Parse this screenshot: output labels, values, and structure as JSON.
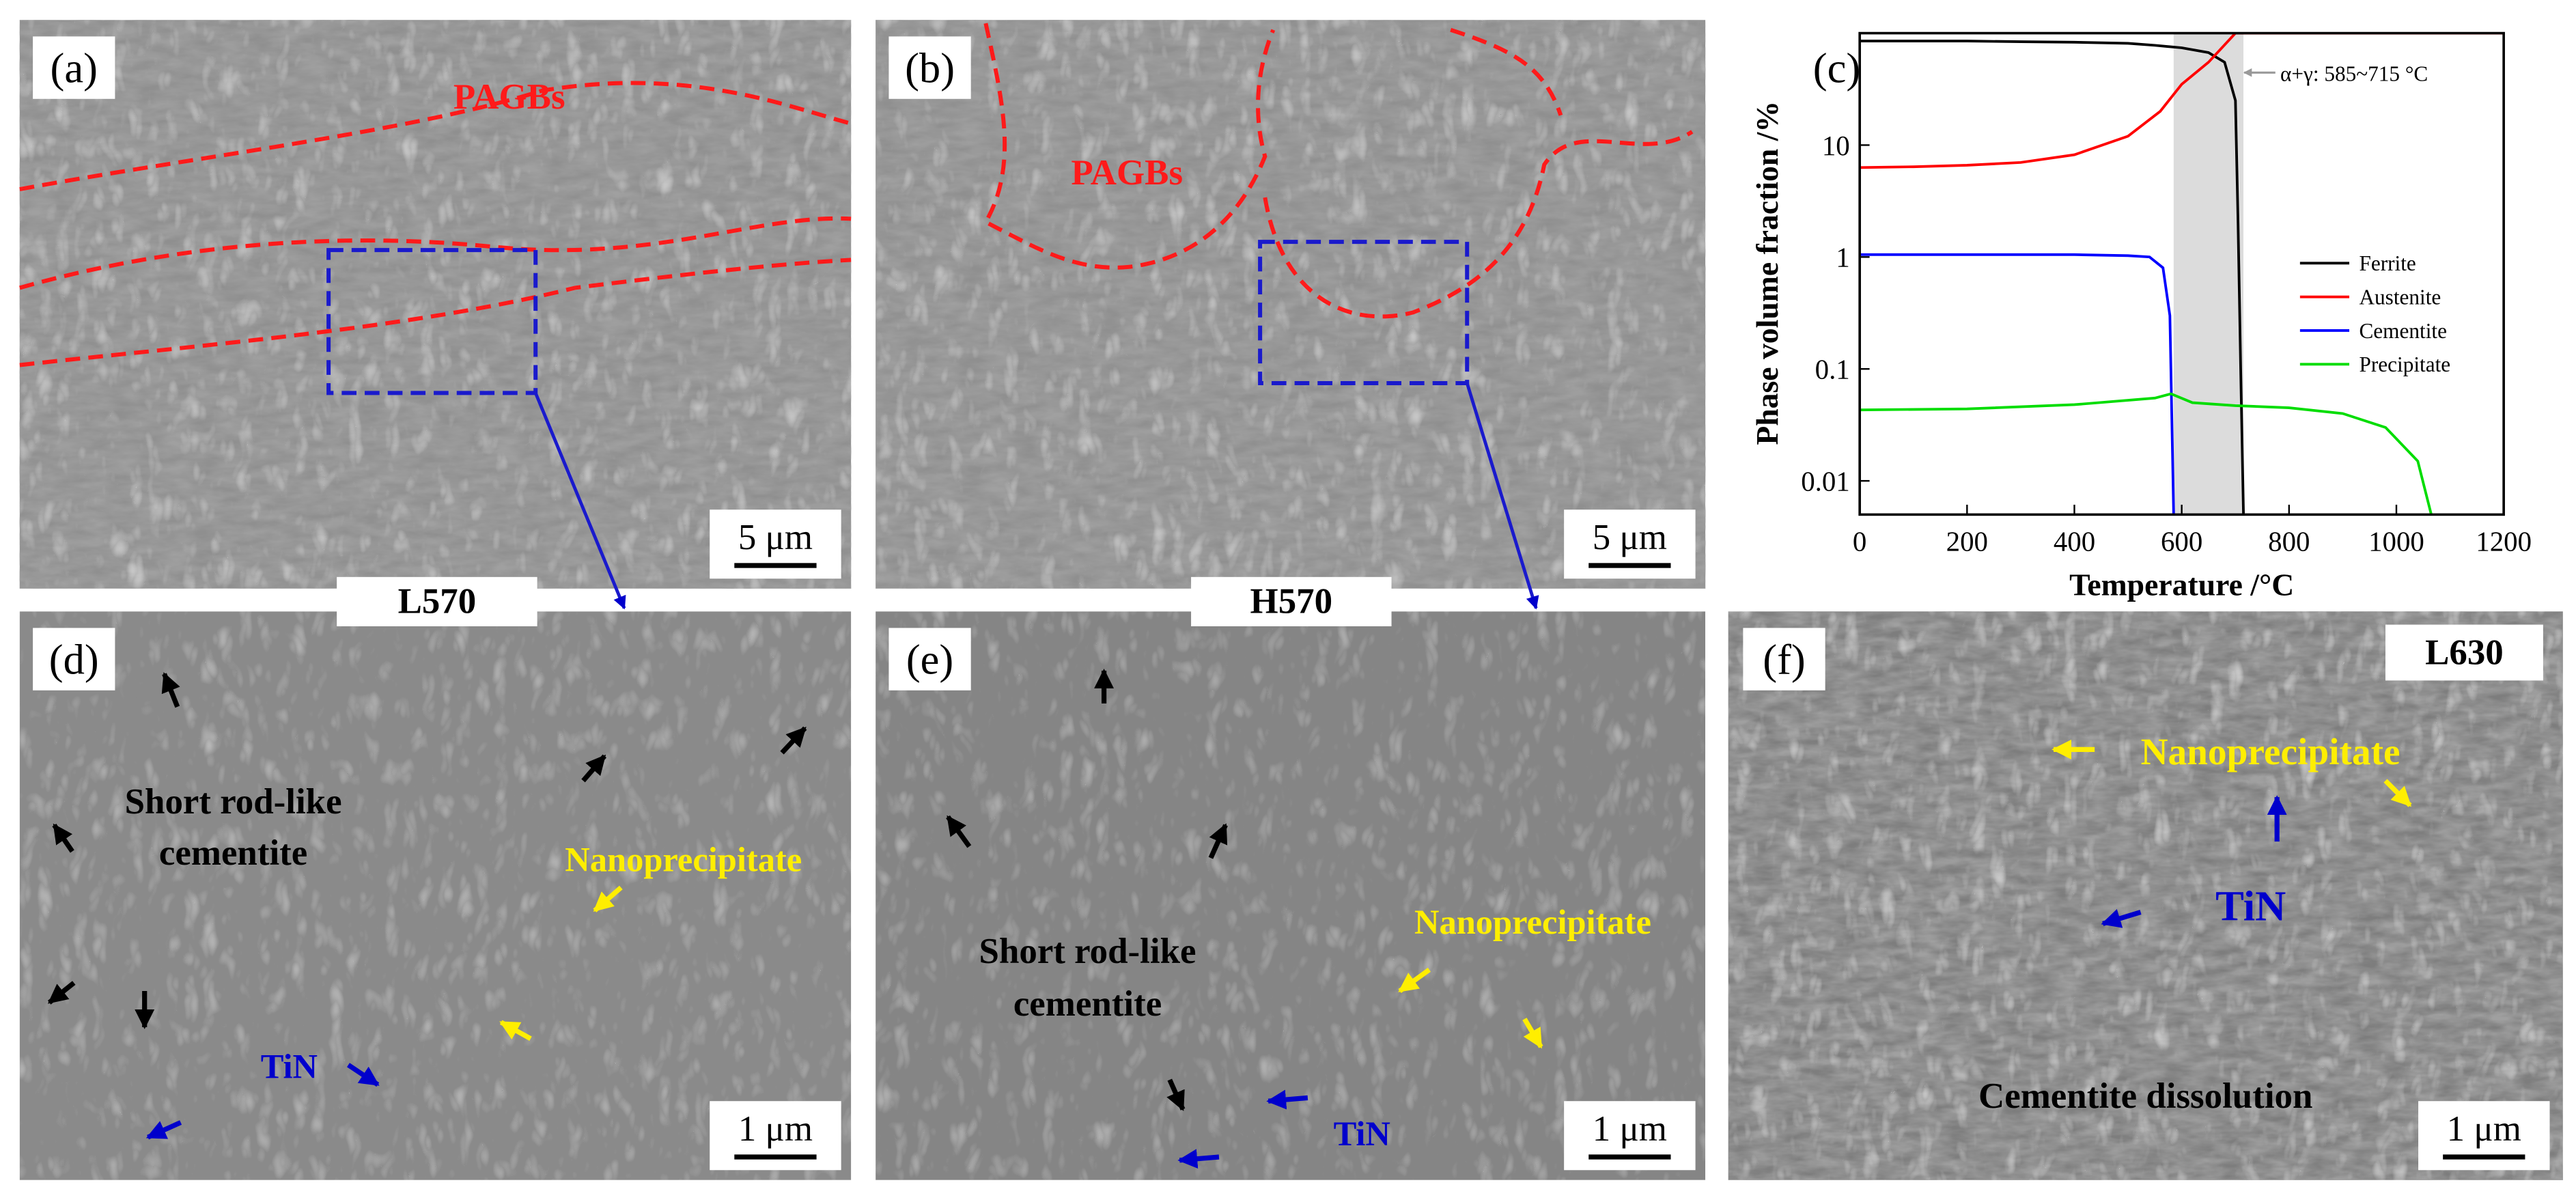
{
  "panels": [
    {
      "label": "(a)",
      "annotations": [
        "PAGBs"
      ],
      "scale_bar": "5 μm"
    },
    {
      "label": "(b)",
      "annotations": [
        "PAGBs"
      ],
      "scale_bar": "5 μm"
    },
    {
      "label": "(c)"
    },
    {
      "label": "(d)",
      "annotations": [
        "Short rod-like",
        "cementite",
        "Nanoprecipitate",
        "TiN"
      ],
      "scale_bar": "1 μm"
    },
    {
      "label": "(e)",
      "annotations": [
        "Short rod-like",
        "cementite",
        "Nanoprecipitate",
        "TiN"
      ],
      "scale_bar": "1 μm"
    },
    {
      "label": "(f)",
      "annotations": [
        "Nanoprecipitate",
        "TiN",
        "Cementite dissolution",
        "L630"
      ],
      "scale_bar": "1 μm"
    }
  ],
  "sample_labels": [
    "L570",
    "H570"
  ],
  "chart_data": {
    "type": "line",
    "x_label": "Temperature /°C",
    "y_label": "Phase volume fraction /%",
    "annotation": "α+γ: 585~715 °C",
    "span": [
      585,
      715
    ],
    "xlim": [
      0,
      1200
    ],
    "xticks": [
      0,
      200,
      400,
      600,
      800,
      1000,
      1200
    ],
    "ylim": [
      0.005,
      100
    ],
    "yticks": [
      0.01,
      0.1,
      1,
      10
    ],
    "log_y": true,
    "legend": "right",
    "series": [
      {
        "name": "Ferrite",
        "color": "#000000",
        "x": [
          0,
          100,
          200,
          300,
          400,
          500,
          550,
          600,
          650,
          680,
          700,
          705,
          710,
          715
        ],
        "values": [
          85,
          85,
          85,
          84,
          83,
          81,
          78,
          74,
          67,
          55,
          25,
          2,
          0.1,
          0.005
        ]
      },
      {
        "name": "Austenite",
        "color": "#ff0000",
        "x": [
          0,
          100,
          200,
          300,
          400,
          500,
          560,
          600,
          650,
          700,
          800,
          1000,
          1200
        ],
        "values": [
          6.3,
          6.4,
          6.6,
          7,
          8.2,
          12,
          20,
          35,
          55,
          100,
          100,
          100,
          100
        ]
      },
      {
        "name": "Cementite",
        "color": "#0000ff",
        "x": [
          0,
          200,
          400,
          500,
          540,
          565,
          578,
          585
        ],
        "values": [
          1.05,
          1.05,
          1.05,
          1.03,
          1,
          0.8,
          0.3,
          0.005
        ]
      },
      {
        "name": "Precipitate",
        "color": "#00dd00",
        "x": [
          0,
          200,
          400,
          550,
          580,
          620,
          700,
          800,
          900,
          980,
          1040,
          1065
        ],
        "values": [
          0.043,
          0.044,
          0.048,
          0.055,
          0.06,
          0.05,
          0.047,
          0.045,
          0.04,
          0.03,
          0.015,
          0.005
        ]
      }
    ]
  }
}
